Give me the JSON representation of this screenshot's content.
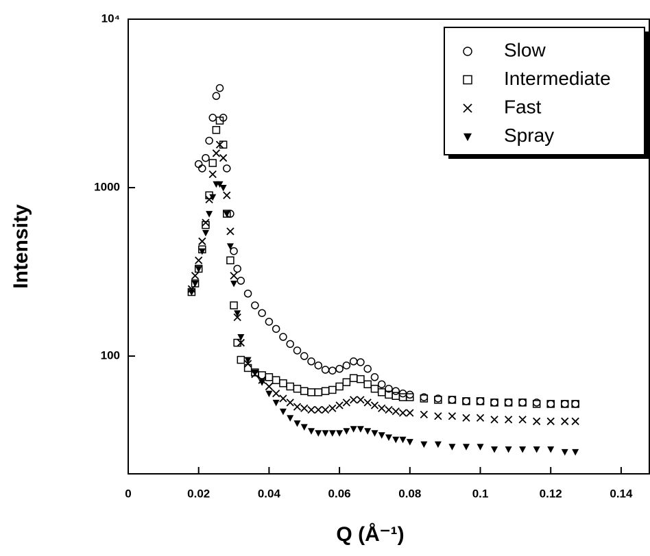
{
  "chart_data": {
    "type": "scatter",
    "x_label": "Q (Å⁻¹)",
    "y_label": "Intensity",
    "log_y": true,
    "legend_position": "upper right",
    "xlim": [
      0,
      0.148
    ],
    "ylim": [
      20,
      10000
    ],
    "xticks": [
      0,
      0.02,
      0.04,
      0.06,
      0.08,
      0.1,
      0.12,
      0.14
    ],
    "yticks": [
      100,
      1000,
      {
        "value": 10000,
        "label": "10⁴"
      }
    ],
    "x": [
      0.018,
      0.019,
      0.02,
      0.021,
      0.022,
      0.023,
      0.024,
      0.025,
      0.026,
      0.027,
      0.028,
      0.029,
      0.03,
      0.031,
      0.032,
      0.034,
      0.036,
      0.038,
      0.04,
      0.042,
      0.044,
      0.046,
      0.048,
      0.05,
      0.052,
      0.054,
      0.056,
      0.058,
      0.06,
      0.062,
      0.064,
      0.066,
      0.068,
      0.07,
      0.072,
      0.074,
      0.076,
      0.078,
      0.08,
      0.084,
      0.088,
      0.092,
      0.096,
      0.1,
      0.104,
      0.108,
      0.112,
      0.116,
      0.12,
      0.124,
      0.127
    ],
    "series": [
      {
        "name": "Slow",
        "marker": "circle",
        "color": "#000000",
        "values": [
          null,
          null,
          1380,
          1300,
          1500,
          1900,
          2600,
          3500,
          3900,
          2600,
          1300,
          700,
          420,
          330,
          280,
          235,
          200,
          180,
          160,
          145,
          130,
          118,
          108,
          100,
          93,
          88,
          83,
          82,
          84,
          88,
          93,
          92,
          84,
          75,
          68,
          64,
          62,
          60,
          59,
          57,
          56,
          55,
          54,
          54,
          53,
          53,
          53,
          53,
          52,
          52,
          52
        ]
      },
      {
        "name": "Intermediate",
        "marker": "square",
        "color": "#000000",
        "values": [
          240,
          270,
          330,
          430,
          600,
          900,
          1400,
          2200,
          2500,
          1800,
          700,
          370,
          200,
          120,
          95,
          85,
          80,
          77,
          75,
          72,
          69,
          66,
          64,
          62,
          61,
          61,
          62,
          63,
          66,
          70,
          74,
          73,
          68,
          64,
          61,
          59,
          58,
          57,
          57,
          56,
          55,
          55,
          54,
          54,
          53,
          53,
          53,
          52,
          52,
          52,
          52
        ]
      },
      {
        "name": "Fast",
        "marker": "x",
        "color": "#000000",
        "values": [
          250,
          300,
          370,
          480,
          620,
          850,
          1200,
          1600,
          1800,
          1500,
          900,
          550,
          300,
          170,
          120,
          90,
          78,
          72,
          66,
          60,
          56,
          53,
          50,
          49,
          48,
          48,
          48,
          49,
          51,
          53,
          55,
          55,
          53,
          51,
          49,
          48,
          47,
          46,
          46,
          45,
          44,
          44,
          43,
          43,
          42,
          42,
          42,
          41,
          41,
          41,
          41
        ]
      },
      {
        "name": "Spray",
        "marker": "triangle-down",
        "color": "#000000",
        "values": [
          240,
          270,
          330,
          420,
          540,
          700,
          880,
          1050,
          1050,
          1000,
          700,
          450,
          270,
          180,
          130,
          95,
          80,
          70,
          60,
          53,
          47,
          43,
          40,
          38,
          36,
          35,
          35,
          35,
          35,
          36,
          37,
          37,
          36,
          35,
          34,
          33,
          32,
          32,
          31,
          30,
          30,
          29,
          29,
          29,
          28,
          28,
          28,
          28,
          28,
          27,
          27
        ]
      }
    ]
  }
}
